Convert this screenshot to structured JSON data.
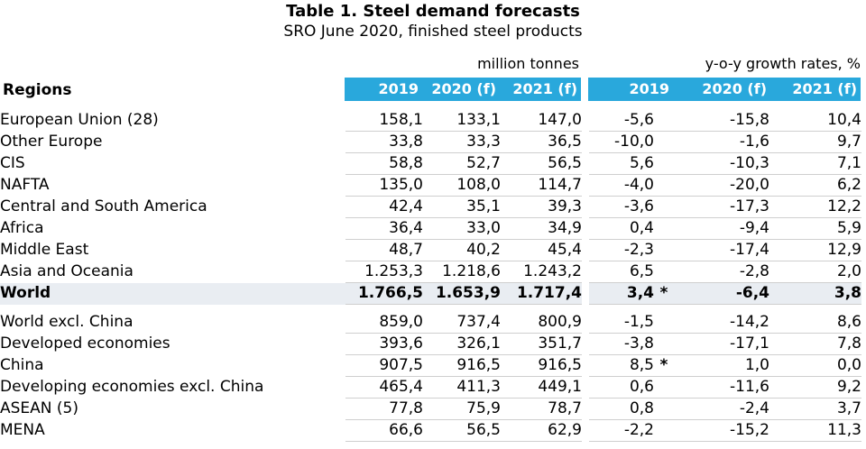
{
  "title": "Table 1. Steel demand forecasts",
  "subtitle": "SRO June 2020, finished steel products",
  "units": {
    "volume": "million tonnes",
    "growth": "y-o-y growth rates, %"
  },
  "header": {
    "regions": "Regions",
    "cols": [
      "2019",
      "2020 (f)",
      "2021 (f)",
      "2019",
      "2020 (f)",
      "2021 (f)"
    ]
  },
  "colors": {
    "header_band": "#29a8dc",
    "world_row_bg": "#e9edf2"
  },
  "rows": [
    {
      "region": "European Union (28)",
      "v2019": "158,1",
      "v2020": "133,1",
      "v2021": "147,0",
      "g2019": "-5,6",
      "g2020": "-15,8",
      "g2021": "10,4",
      "star": ""
    },
    {
      "region": "Other Europe",
      "v2019": "33,8",
      "v2020": "33,3",
      "v2021": "36,5",
      "g2019": "-10,0",
      "g2020": "-1,6",
      "g2021": "9,7",
      "star": ""
    },
    {
      "region": "CIS",
      "v2019": "58,8",
      "v2020": "52,7",
      "v2021": "56,5",
      "g2019": "5,6",
      "g2020": "-10,3",
      "g2021": "7,1",
      "star": ""
    },
    {
      "region": "NAFTA",
      "v2019": "135,0",
      "v2020": "108,0",
      "v2021": "114,7",
      "g2019": "-4,0",
      "g2020": "-20,0",
      "g2021": "6,2",
      "star": ""
    },
    {
      "region": "Central and South America",
      "v2019": "42,4",
      "v2020": "35,1",
      "v2021": "39,3",
      "g2019": "-3,6",
      "g2020": "-17,3",
      "g2021": "12,2",
      "star": ""
    },
    {
      "region": "Africa",
      "v2019": "36,4",
      "v2020": "33,0",
      "v2021": "34,9",
      "g2019": "0,4",
      "g2020": "-9,4",
      "g2021": "5,9",
      "star": ""
    },
    {
      "region": "Middle East",
      "v2019": "48,7",
      "v2020": "40,2",
      "v2021": "45,4",
      "g2019": "-2,3",
      "g2020": "-17,4",
      "g2021": "12,9",
      "star": ""
    },
    {
      "region": "Asia and Oceania",
      "v2019": "1.253,3",
      "v2020": "1.218,6",
      "v2021": "1.243,2",
      "g2019": "6,5",
      "g2020": "-2,8",
      "g2021": "2,0",
      "star": ""
    },
    {
      "region": "World",
      "v2019": "1.766,5",
      "v2020": "1.653,9",
      "v2021": "1.717,4",
      "g2019": "3,4",
      "g2020": "-6,4",
      "g2021": "3,8",
      "star": "*"
    }
  ],
  "subrows": [
    {
      "region": "World excl. China",
      "indent": 1,
      "v2019": "859,0",
      "v2020": "737,4",
      "v2021": "800,9",
      "g2019": "-1,5",
      "g2020": "-14,2",
      "g2021": "8,6",
      "star": ""
    },
    {
      "region": "Developed economies",
      "indent": 1,
      "v2019": "393,6",
      "v2020": "326,1",
      "v2021": "351,7",
      "g2019": "-3,8",
      "g2020": "-17,1",
      "g2021": "7,8",
      "star": ""
    },
    {
      "region": "China",
      "indent": 1,
      "v2019": "907,5",
      "v2020": "916,5",
      "v2021": "916,5",
      "g2019": "8,5",
      "g2020": "1,0",
      "g2021": "0,0",
      "star": "*"
    },
    {
      "region": "Developing economies excl. China",
      "indent": 1,
      "v2019": "465,4",
      "v2020": "411,3",
      "v2021": "449,1",
      "g2019": "0,6",
      "g2020": "-11,6",
      "g2021": "9,2",
      "star": ""
    },
    {
      "region": "ASEAN (5)",
      "indent": 2,
      "v2019": "77,8",
      "v2020": "75,9",
      "v2021": "78,7",
      "g2019": "0,8",
      "g2020": "-2,4",
      "g2021": "3,7",
      "star": ""
    },
    {
      "region": "MENA",
      "indent": 2,
      "v2019": "66,6",
      "v2020": "56,5",
      "v2021": "62,9",
      "g2019": "-2,2",
      "g2020": "-15,2",
      "g2021": "11,3",
      "star": ""
    }
  ]
}
